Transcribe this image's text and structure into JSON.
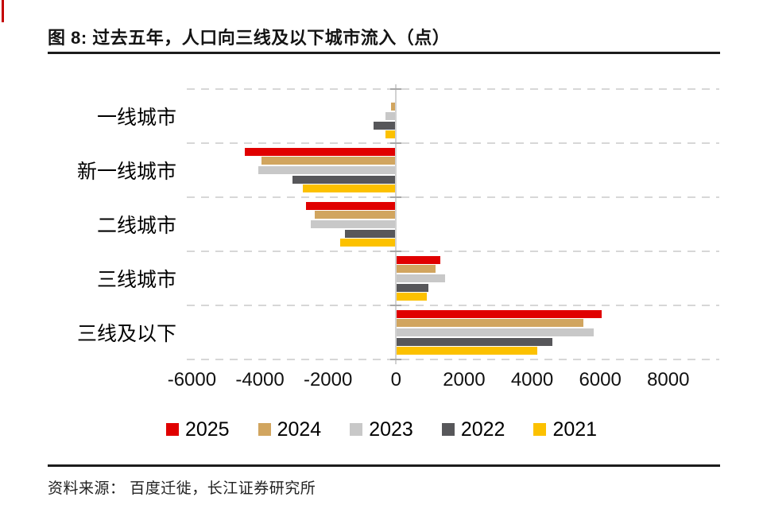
{
  "page": {
    "title": "图 8: 过去五年，人口向三线及以下城市流入（点）",
    "source": "资料来源： 百度迁徙，长江证券研究所"
  },
  "colors": {
    "accent_red": "#e00000",
    "divider": "#1c1c1c",
    "gridline": "#d7d7d7",
    "zero_axis": "#d2d2d2"
  },
  "chart_data": {
    "type": "bar",
    "orientation": "horizontal",
    "title": "过去五年，人口向三线及以下城市流入（点）",
    "categories": [
      "一线城市",
      "新一线城市",
      "二线城市",
      "三线城市",
      "三线及以下"
    ],
    "series": [
      {
        "name": "2025",
        "color": "#e00000",
        "values": [
          0,
          -4450,
          -2650,
          1300,
          6050
        ]
      },
      {
        "name": "2024",
        "color": "#d1a55f",
        "values": [
          -150,
          -3950,
          -2400,
          1150,
          5500
        ]
      },
      {
        "name": "2023",
        "color": "#c8c8c8",
        "values": [
          -300,
          -4050,
          -2500,
          1450,
          5800
        ]
      },
      {
        "name": "2022",
        "color": "#57575a",
        "values": [
          -650,
          -3050,
          -1500,
          950,
          4600
        ]
      },
      {
        "name": "2021",
        "color": "#fcc100",
        "values": [
          -320,
          -2750,
          -1650,
          900,
          4150
        ]
      }
    ],
    "xticks": [
      -6000,
      -4000,
      -2000,
      0,
      2000,
      4000,
      6000,
      8000
    ],
    "xlim": [
      -6150,
      9500
    ],
    "xlabel": "",
    "ylabel": "",
    "grid": "dashed horizontal separators between category groups",
    "legend_position": "bottom"
  }
}
